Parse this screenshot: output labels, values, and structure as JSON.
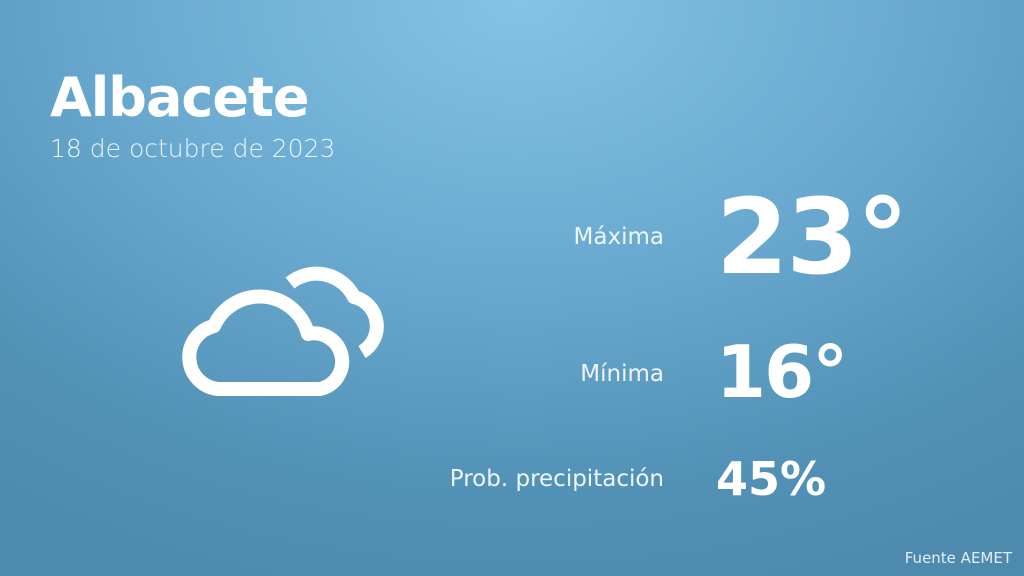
{
  "city": "Albacete",
  "date": "18 de octubre de 2023",
  "weather_icon": "cloudy-icon",
  "stats": {
    "max_label": "Máxima",
    "max_value": "23°",
    "min_label": "Mínima",
    "min_value": "16°",
    "precip_label": "Prob. precipitación",
    "precip_value": "45%"
  },
  "source": "Fuente AEMET"
}
